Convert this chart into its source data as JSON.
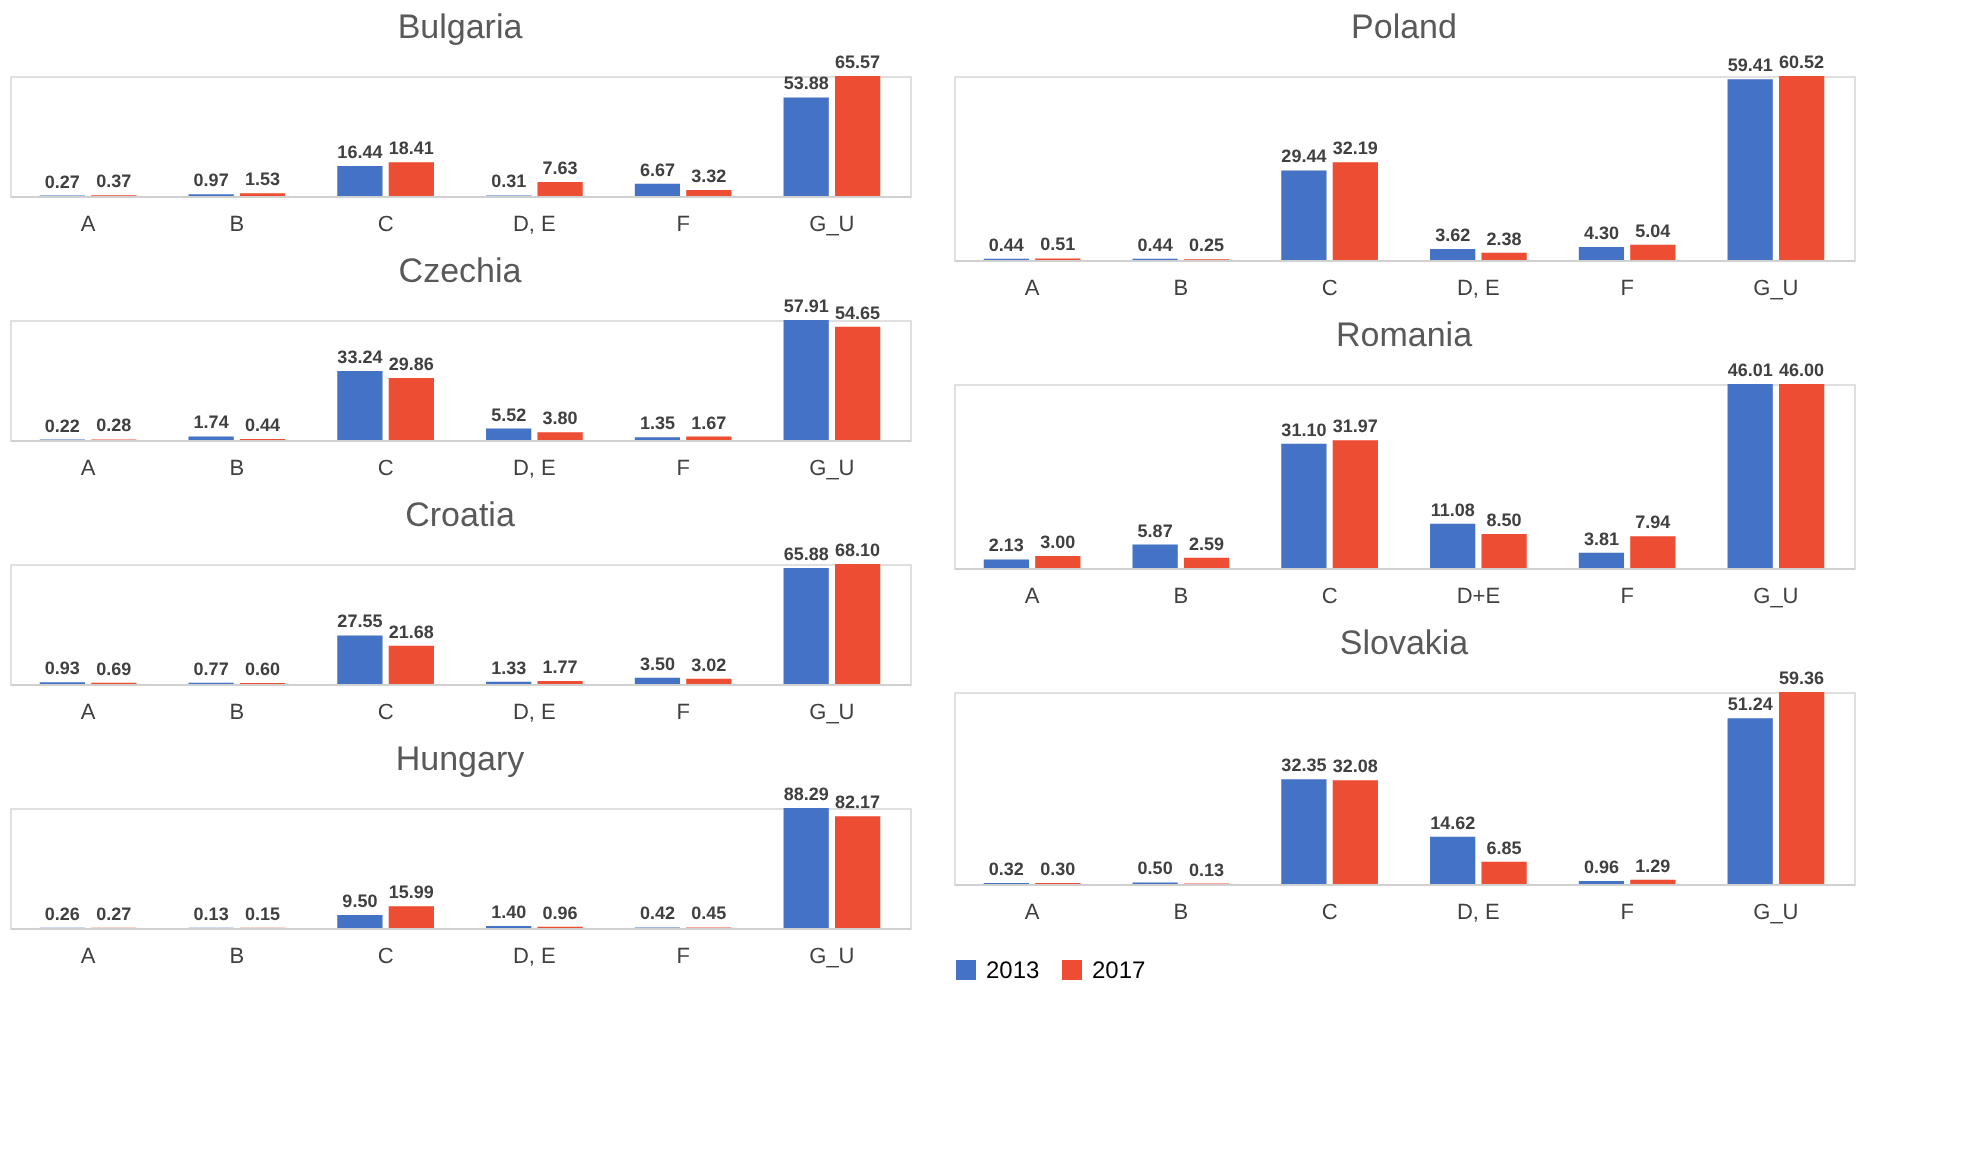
{
  "chart_data": [
    {
      "type": "bar",
      "title": "Bulgaria",
      "categories": [
        "A",
        "B",
        "C",
        "D, E",
        "F",
        "G_U"
      ],
      "grid": false,
      "series": [
        {
          "color": "#4472c4",
          "values": [
            0.27,
            0.97,
            16.44,
            0.31,
            6.67,
            53.88
          ],
          "value_labels": [
            "0.27",
            "0.97",
            "16.44",
            "0.31",
            "6.67",
            "53.88"
          ]
        },
        {
          "color": "#ed4d32",
          "values": [
            0.37,
            1.53,
            18.41,
            7.63,
            3.32,
            65.57
          ],
          "value_labels": [
            "0.37",
            "1.53",
            "18.41",
            "7.63",
            "3.32",
            "65.57"
          ]
        }
      ]
    },
    {
      "type": "bar",
      "title": "Czechia",
      "categories": [
        "A",
        "B",
        "C",
        "D, E",
        "F",
        "G_U"
      ],
      "grid": false,
      "series": [
        {
          "color": "#4472c4",
          "values": [
            0.22,
            1.74,
            33.24,
            5.52,
            1.35,
            57.91
          ],
          "value_labels": [
            "0.22",
            "1.74",
            "33.24",
            "5.52",
            "1.35",
            "57.91"
          ]
        },
        {
          "color": "#ed4d32",
          "values": [
            0.28,
            0.44,
            29.86,
            3.8,
            1.67,
            54.65
          ],
          "value_labels": [
            "0.28",
            "0.44",
            "29.86",
            "3.80",
            "1.67",
            "54.65"
          ]
        }
      ]
    },
    {
      "type": "bar",
      "title": "Croatia",
      "categories": [
        "A",
        "B",
        "C",
        "D, E",
        "F",
        "G_U"
      ],
      "grid": false,
      "series": [
        {
          "color": "#4472c4",
          "values": [
            0.93,
            0.77,
            27.55,
            1.33,
            3.5,
            65.88
          ],
          "value_labels": [
            "0.93",
            "0.77",
            "27.55",
            "1.33",
            "3.50",
            "65.88"
          ]
        },
        {
          "color": "#ed4d32",
          "values": [
            0.69,
            0.6,
            21.68,
            1.77,
            3.02,
            68.1
          ],
          "value_labels": [
            "0.69",
            "0.60",
            "21.68",
            "1.77",
            "3.02",
            "68.10"
          ]
        }
      ]
    },
    {
      "type": "bar",
      "title": "Hungary",
      "categories": [
        "A",
        "B",
        "C",
        "D, E",
        "F",
        "G_U"
      ],
      "grid": false,
      "series": [
        {
          "color": "#4472c4",
          "values": [
            0.26,
            0.13,
            9.5,
            1.4,
            0.42,
            88.29
          ],
          "value_labels": [
            "0.26",
            "0.13",
            "9.50",
            "1.40",
            "0.42",
            "88.29"
          ]
        },
        {
          "color": "#ed4d32",
          "values": [
            0.27,
            0.15,
            15.99,
            0.96,
            0.45,
            82.17
          ],
          "value_labels": [
            "0.27",
            "0.15",
            "15.99",
            "0.96",
            "0.45",
            "82.17"
          ]
        }
      ]
    },
    {
      "type": "bar",
      "title": "Poland",
      "categories": [
        "A",
        "B",
        "C",
        "D, E",
        "F",
        "G_U"
      ],
      "grid": false,
      "series": [
        {
          "color": "#4472c4",
          "values": [
            0.44,
            0.44,
            29.44,
            3.62,
            4.3,
            59.41
          ],
          "value_labels": [
            "0.44",
            "0.44",
            "29.44",
            "3.62",
            "4.30",
            "59.41"
          ]
        },
        {
          "color": "#ed4d32",
          "values": [
            0.51,
            0.25,
            32.19,
            2.38,
            5.04,
            60.52
          ],
          "value_labels": [
            "0.51",
            "0.25",
            "32.19",
            "2.38",
            "5.04",
            "60.52"
          ]
        }
      ]
    },
    {
      "type": "bar",
      "title": "Romania",
      "categories": [
        "A",
        "B",
        "C",
        "D+E",
        "F",
        "G_U"
      ],
      "grid": false,
      "series": [
        {
          "color": "#4472c4",
          "values": [
            2.13,
            5.87,
            31.1,
            11.08,
            3.81,
            46.01
          ],
          "value_labels": [
            "2.13",
            "5.87",
            "31.10",
            "11.08",
            "3.81",
            "46.01"
          ]
        },
        {
          "color": "#ed4d32",
          "values": [
            3.0,
            2.59,
            31.97,
            8.5,
            7.94,
            46.0
          ],
          "value_labels": [
            "3.00",
            "2.59",
            "31.97",
            "8.50",
            "7.94",
            "46.00"
          ]
        }
      ]
    },
    {
      "type": "bar",
      "title": "Slovakia",
      "categories": [
        "A",
        "B",
        "C",
        "D, E",
        "F",
        "G_U"
      ],
      "grid": false,
      "legend": "bottom",
      "series": [
        {
          "name": "2013",
          "color": "#4472c4",
          "values": [
            0.32,
            0.5,
            32.35,
            14.62,
            0.96,
            51.24
          ],
          "value_labels": [
            "0.32",
            "0.50",
            "32.35",
            "14.62",
            "0.96",
            "51.24"
          ]
        },
        {
          "name": "2017",
          "color": "#ed4d32",
          "values": [
            0.3,
            0.13,
            32.08,
            6.85,
            1.29,
            59.36
          ],
          "value_labels": [
            "0.30",
            "0.13",
            "32.08",
            "6.85",
            "1.29",
            "59.36"
          ]
        }
      ]
    }
  ]
}
